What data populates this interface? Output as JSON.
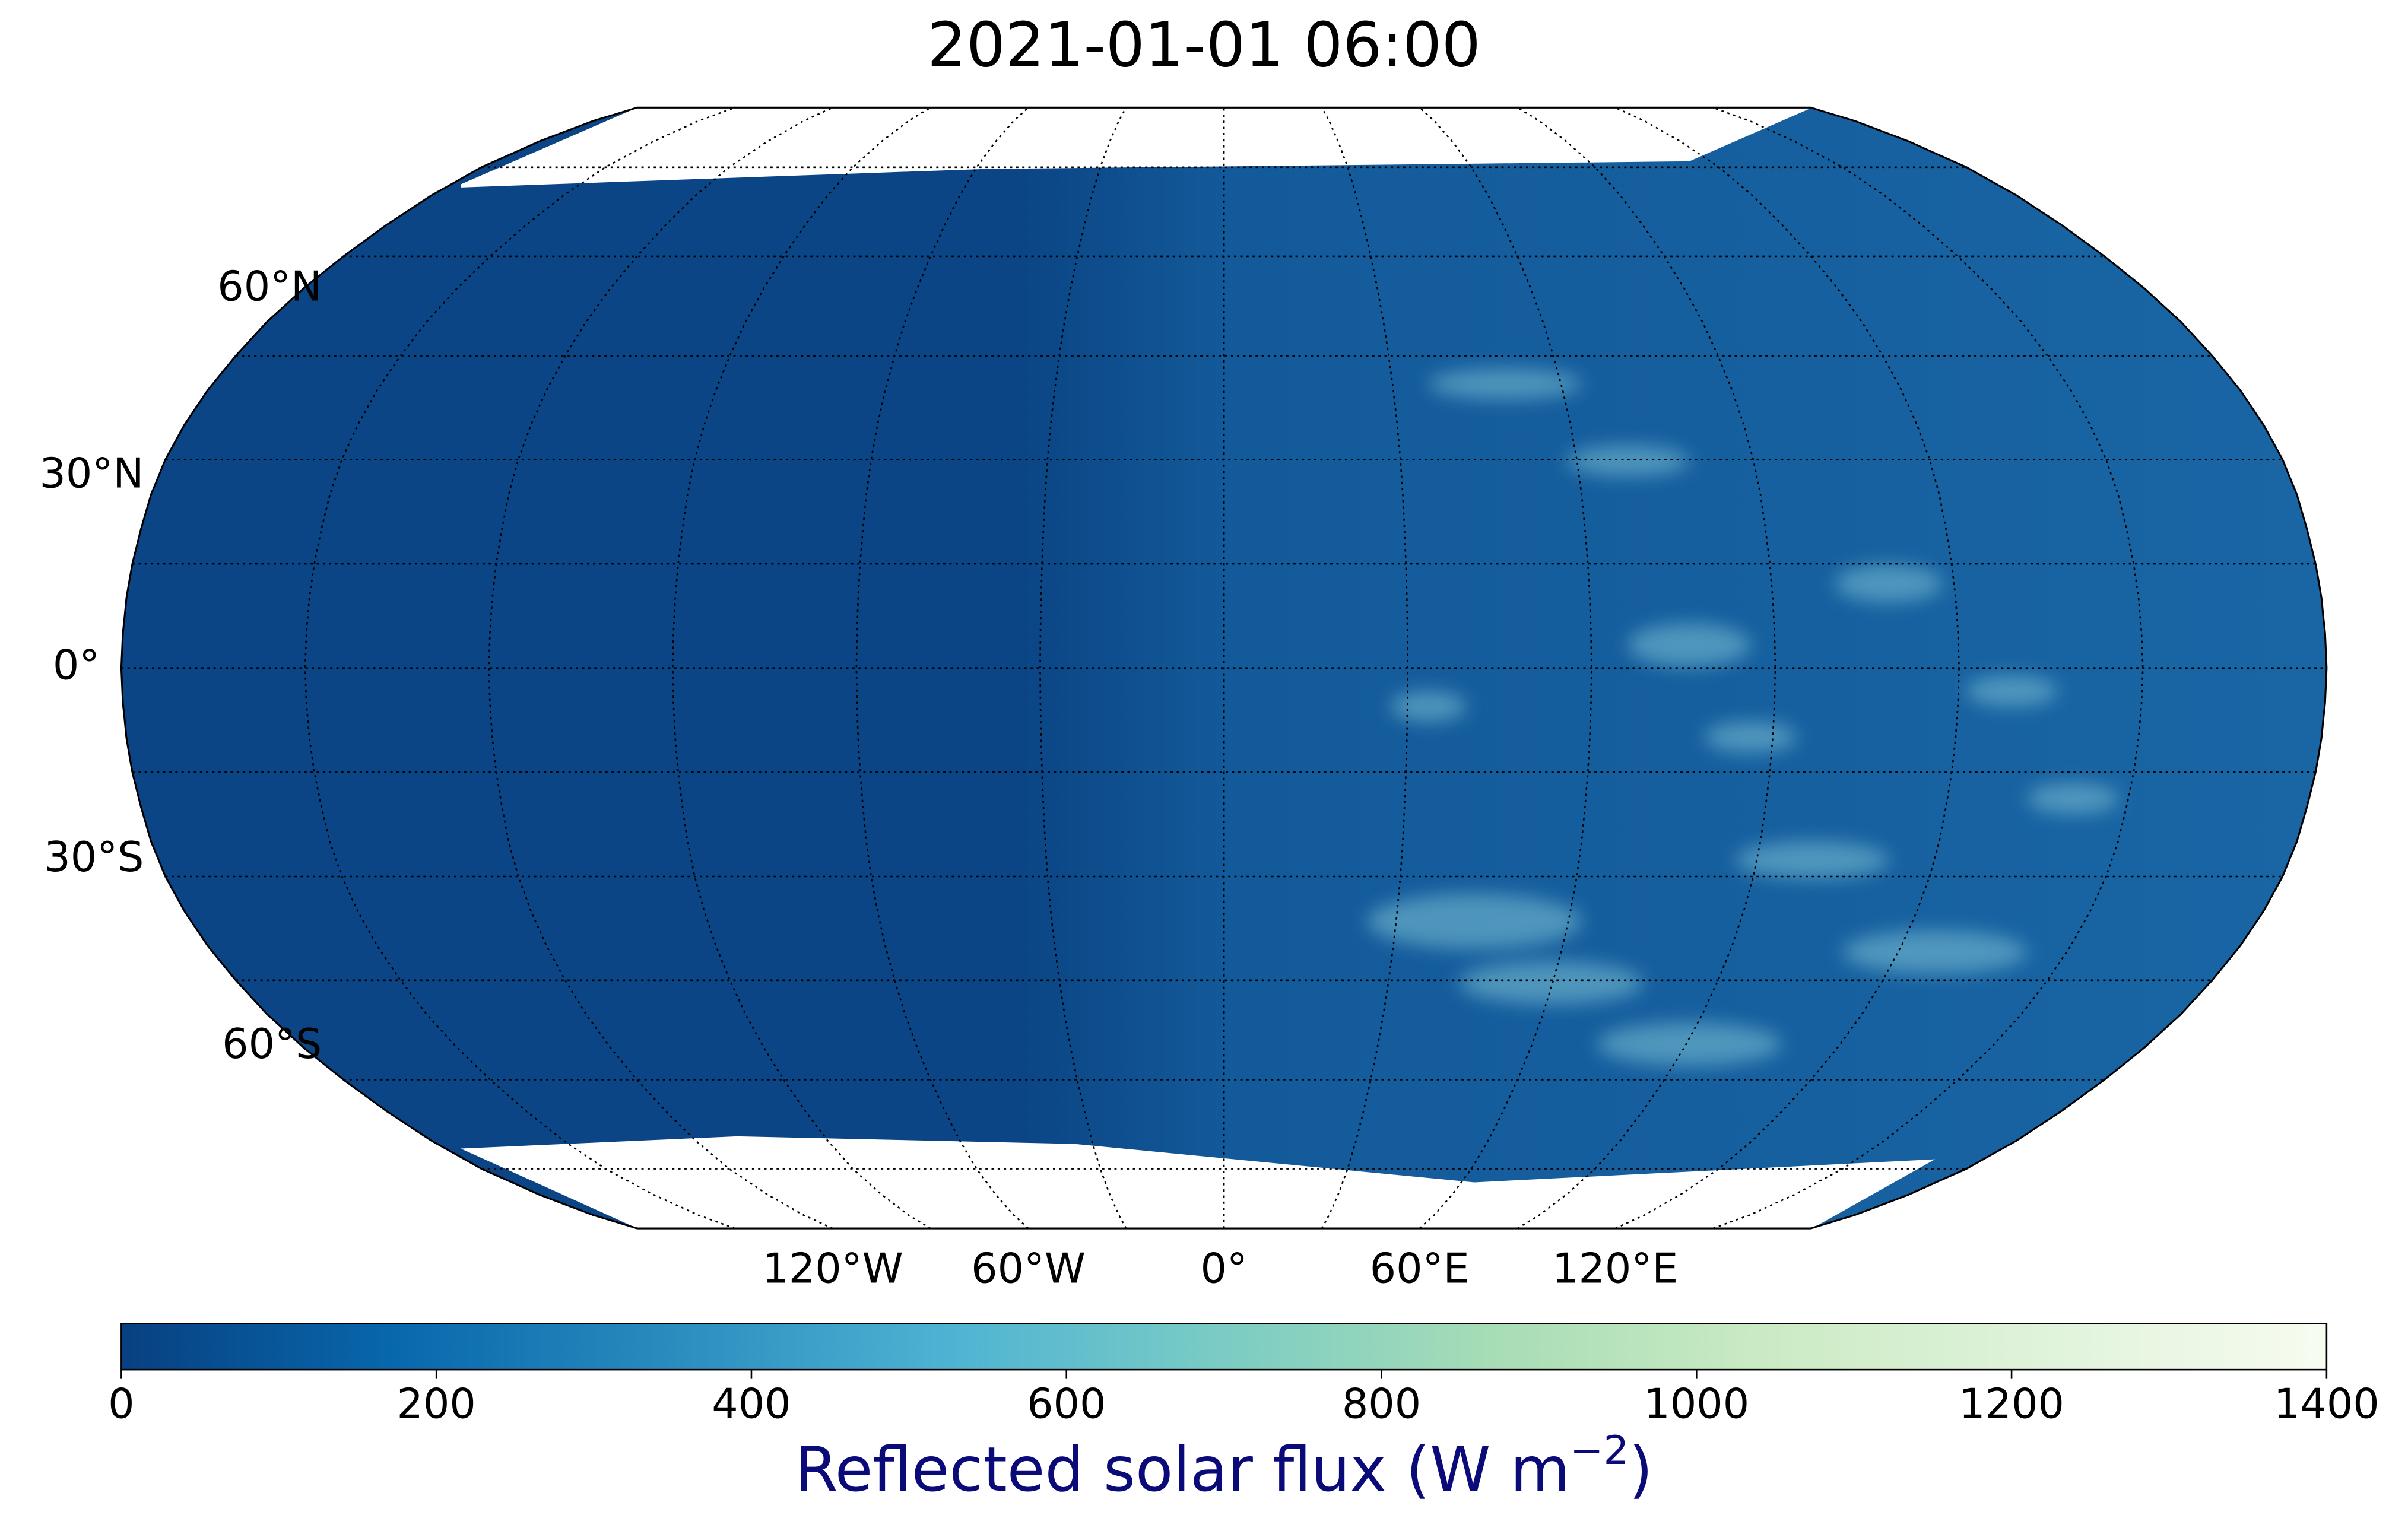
{
  "chart_data": {
    "type": "map",
    "title": "2021-01-01 06:00",
    "title_color": "#0a0a78",
    "lat_ticks": [
      {
        "value": 60,
        "label": "60°N"
      },
      {
        "value": 30,
        "label": "30°N"
      },
      {
        "value": 0,
        "label": "0°"
      },
      {
        "value": -30,
        "label": "30°S"
      },
      {
        "value": -60,
        "label": "60°S"
      }
    ],
    "lon_ticks": [
      {
        "value": -120,
        "label": "120°W"
      },
      {
        "value": -60,
        "label": "60°W"
      },
      {
        "value": 0,
        "label": "0°"
      },
      {
        "value": 60,
        "label": "60°E"
      },
      {
        "value": 120,
        "label": "120°E"
      }
    ],
    "colorbar": {
      "label": {
        "text": "Reflected solar flux (W m",
        "superscript": "−2",
        "suffix": ")"
      },
      "clim": [
        0,
        1400
      ],
      "ticks": [
        0,
        200,
        400,
        600,
        800,
        1000,
        1200,
        1400
      ],
      "colormap": [
        "#084081",
        "#0868ac",
        "#2b8cbe",
        "#4eb3d3",
        "#7bccc4",
        "#a8ddb5",
        "#ccebc5",
        "#e0f3db",
        "#f7fcf0"
      ]
    }
  }
}
